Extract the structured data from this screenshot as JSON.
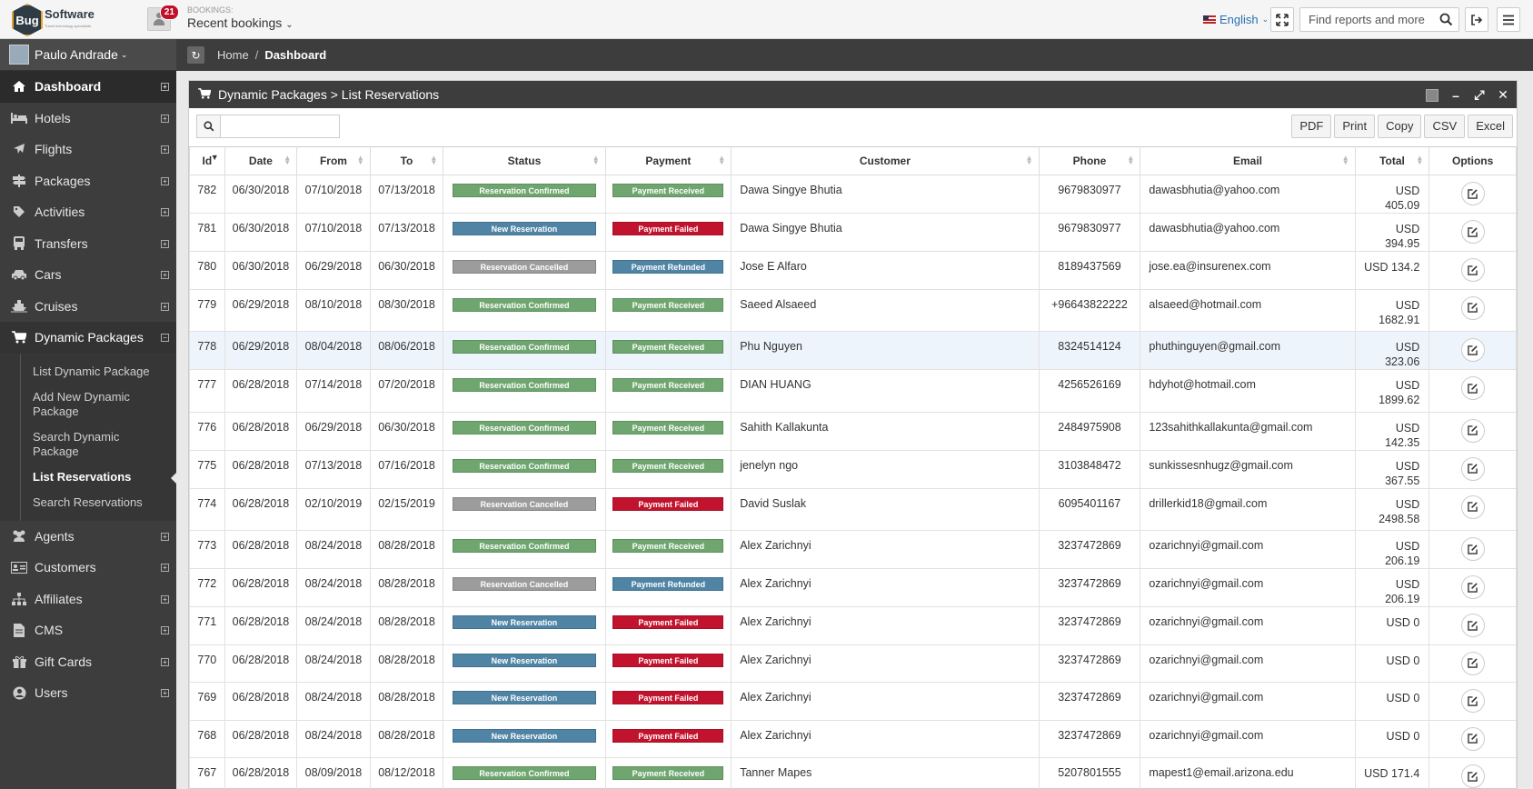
{
  "topbar": {
    "logo_bold": "Bug",
    "logo_text": "Software",
    "logo_sub": "Travel technology specialists",
    "notifications": "21",
    "bookings_label": "BOOKINGS:",
    "bookings_value": "Recent bookings",
    "language": "English",
    "search_placeholder": "Find reports and more"
  },
  "sidebar": {
    "user": "Paulo Andrade",
    "items": [
      {
        "label": "Dashboard",
        "icon": "home-icon"
      },
      {
        "label": "Hotels",
        "icon": "bed-icon"
      },
      {
        "label": "Flights",
        "icon": "plane-icon"
      },
      {
        "label": "Packages",
        "icon": "signpost-icon"
      },
      {
        "label": "Activities",
        "icon": "tag-icon"
      },
      {
        "label": "Transfers",
        "icon": "bus-icon"
      },
      {
        "label": "Cars",
        "icon": "car-icon"
      },
      {
        "label": "Cruises",
        "icon": "ship-icon"
      },
      {
        "label": "Dynamic Packages",
        "icon": "cart-icon"
      },
      {
        "label": "Agents",
        "icon": "users-icon"
      },
      {
        "label": "Customers",
        "icon": "id-card-icon"
      },
      {
        "label": "Affiliates",
        "icon": "sitemap-icon"
      },
      {
        "label": "CMS",
        "icon": "file-icon"
      },
      {
        "label": "Gift Cards",
        "icon": "gift-icon"
      },
      {
        "label": "Users",
        "icon": "user-circle-icon"
      }
    ],
    "subitems": [
      "List Dynamic Package",
      "Add New Dynamic Package",
      "Search Dynamic Package",
      "List Reservations",
      "Search Reservations"
    ]
  },
  "breadcrumb": {
    "home": "Home",
    "sep": "/",
    "current": "Dashboard"
  },
  "panel": {
    "title": "Dynamic Packages > List Reservations",
    "exports": [
      "PDF",
      "Print",
      "Copy",
      "CSV",
      "Excel"
    ]
  },
  "table": {
    "columns": [
      "Id",
      "Date",
      "From",
      "To",
      "Status",
      "Payment",
      "Customer",
      "Phone",
      "Email",
      "Total",
      "Options"
    ],
    "rows": [
      {
        "id": "782",
        "date": "06/30/2018",
        "from": "07/10/2018",
        "to": "07/13/2018",
        "status": "Reservation Confirmed",
        "payment": "Payment Received",
        "customer": "Dawa Singye Bhutia",
        "phone": "9679830977",
        "email": "dawasbhutia@yahoo.com",
        "total": "USD 405.09"
      },
      {
        "id": "781",
        "date": "06/30/2018",
        "from": "07/10/2018",
        "to": "07/13/2018",
        "status": "New Reservation",
        "payment": "Payment Failed",
        "customer": "Dawa Singye Bhutia",
        "phone": "9679830977",
        "email": "dawasbhutia@yahoo.com",
        "total": "USD 394.95"
      },
      {
        "id": "780",
        "date": "06/30/2018",
        "from": "06/29/2018",
        "to": "06/30/2018",
        "status": "Reservation Cancelled",
        "payment": "Payment Refunded",
        "customer": "Jose E Alfaro",
        "phone": "8189437569",
        "email": "jose.ea@insurenex.com",
        "total": "USD 134.2"
      },
      {
        "id": "779",
        "date": "06/29/2018",
        "from": "08/10/2018",
        "to": "08/30/2018",
        "status": "Reservation Confirmed",
        "payment": "Payment Received",
        "customer": "Saeed Alsaeed",
        "phone": "+96643822222",
        "email": "alsaeed@hotmail.com",
        "total": "USD 1682.91"
      },
      {
        "id": "778",
        "date": "06/29/2018",
        "from": "08/04/2018",
        "to": "08/06/2018",
        "status": "Reservation Confirmed",
        "payment": "Payment Received",
        "customer": "Phu Nguyen",
        "phone": "8324514124",
        "email": "phuthinguyen@gmail.com",
        "total": "USD 323.06"
      },
      {
        "id": "777",
        "date": "06/28/2018",
        "from": "07/14/2018",
        "to": "07/20/2018",
        "status": "Reservation Confirmed",
        "payment": "Payment Received",
        "customer": "DIAN HUANG",
        "phone": "4256526169",
        "email": "hdyhot@hotmail.com",
        "total": "USD 1899.62"
      },
      {
        "id": "776",
        "date": "06/28/2018",
        "from": "06/29/2018",
        "to": "06/30/2018",
        "status": "Reservation Confirmed",
        "payment": "Payment Received",
        "customer": "Sahith Kallakunta",
        "phone": "2484975908",
        "email": "123sahithkallakunta@gmail.com",
        "total": "USD 142.35"
      },
      {
        "id": "775",
        "date": "06/28/2018",
        "from": "07/13/2018",
        "to": "07/16/2018",
        "status": "Reservation Confirmed",
        "payment": "Payment Received",
        "customer": "jenelyn ngo",
        "phone": "3103848472",
        "email": "sunkissesnhugz@gmail.com",
        "total": "USD 367.55"
      },
      {
        "id": "774",
        "date": "06/28/2018",
        "from": "02/10/2019",
        "to": "02/15/2019",
        "status": "Reservation Cancelled",
        "payment": "Payment Failed",
        "customer": "David Suslak",
        "phone": "6095401167",
        "email": "drillerkid18@gmail.com",
        "total": "USD 2498.58"
      },
      {
        "id": "773",
        "date": "06/28/2018",
        "from": "08/24/2018",
        "to": "08/28/2018",
        "status": "Reservation Confirmed",
        "payment": "Payment Received",
        "customer": "Alex Zarichnyi",
        "phone": "3237472869",
        "email": "ozarichnyi@gmail.com",
        "total": "USD 206.19"
      },
      {
        "id": "772",
        "date": "06/28/2018",
        "from": "08/24/2018",
        "to": "08/28/2018",
        "status": "Reservation Cancelled",
        "payment": "Payment Refunded",
        "customer": "Alex Zarichnyi",
        "phone": "3237472869",
        "email": "ozarichnyi@gmail.com",
        "total": "USD 206.19"
      },
      {
        "id": "771",
        "date": "06/28/2018",
        "from": "08/24/2018",
        "to": "08/28/2018",
        "status": "New Reservation",
        "payment": "Payment Failed",
        "customer": "Alex Zarichnyi",
        "phone": "3237472869",
        "email": "ozarichnyi@gmail.com",
        "total": "USD 0"
      },
      {
        "id": "770",
        "date": "06/28/2018",
        "from": "08/24/2018",
        "to": "08/28/2018",
        "status": "New Reservation",
        "payment": "Payment Failed",
        "customer": "Alex Zarichnyi",
        "phone": "3237472869",
        "email": "ozarichnyi@gmail.com",
        "total": "USD 0"
      },
      {
        "id": "769",
        "date": "06/28/2018",
        "from": "08/24/2018",
        "to": "08/28/2018",
        "status": "New Reservation",
        "payment": "Payment Failed",
        "customer": "Alex Zarichnyi",
        "phone": "3237472869",
        "email": "ozarichnyi@gmail.com",
        "total": "USD 0"
      },
      {
        "id": "768",
        "date": "06/28/2018",
        "from": "08/24/2018",
        "to": "08/28/2018",
        "status": "New Reservation",
        "payment": "Payment Failed",
        "customer": "Alex Zarichnyi",
        "phone": "3237472869",
        "email": "ozarichnyi@gmail.com",
        "total": "USD 0"
      },
      {
        "id": "767",
        "date": "06/28/2018",
        "from": "08/09/2018",
        "to": "08/12/2018",
        "status": "Reservation Confirmed",
        "payment": "Payment Received",
        "customer": "Tanner Mapes",
        "phone": "5207801555",
        "email": "mapest1@email.arizona.edu",
        "total": "USD 171.4"
      }
    ]
  },
  "colors": {
    "confirmed": "#6fa66f",
    "new": "#4f84a5",
    "cancelled": "#9c9c9c",
    "failed": "#c2132e",
    "refunded": "#4f84a5"
  }
}
